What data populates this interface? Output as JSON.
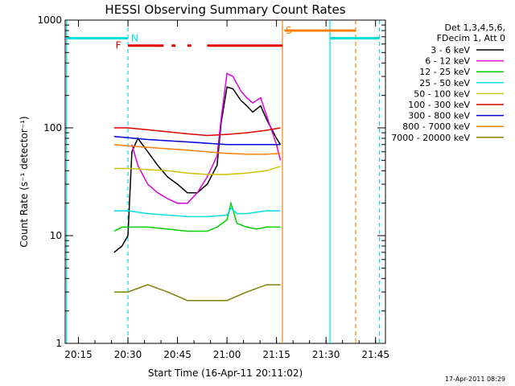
{
  "chart_data": {
    "type": "line",
    "title": "HESSI Observing Summary Count Rates",
    "xlabel": "Start Time (16-Apr-11 20:11:02)",
    "ylabel": "Count Rate (s⁻¹ detector⁻¹)",
    "yscale": "log",
    "ylim": [
      1,
      1000
    ],
    "xlim": [
      20.183,
      21.8
    ],
    "x_tick_labels": [
      "20:15",
      "20:30",
      "20:45",
      "21:00",
      "21:15",
      "21:30",
      "21:45"
    ],
    "x_ticks": [
      20.25,
      20.5,
      20.75,
      21.0,
      21.25,
      21.5,
      21.75
    ],
    "y_tick_labels": [
      "1",
      "10",
      "100",
      "1000"
    ],
    "y_ticks": [
      1,
      10,
      100,
      1000
    ],
    "legend": {
      "placement": "right",
      "header": [
        "Det 1,3,4,5,6,",
        "FDecim 1, Att 0"
      ]
    },
    "series": [
      {
        "name": "3 - 6 keV",
        "color": "#000000",
        "x": [
          20.43,
          20.47,
          20.5,
          20.52,
          20.55,
          20.6,
          20.65,
          20.7,
          20.75,
          20.8,
          20.85,
          20.9,
          20.95,
          20.97,
          21.0,
          21.03,
          21.07,
          21.1,
          21.13,
          21.17,
          21.2,
          21.25,
          21.27
        ],
        "y": [
          7,
          8,
          10,
          60,
          80,
          60,
          45,
          35,
          30,
          25,
          25,
          30,
          45,
          110,
          240,
          230,
          180,
          160,
          140,
          160,
          120,
          80,
          70
        ]
      },
      {
        "name": "6 - 12 keV",
        "color": "#e000e0",
        "x": [
          20.52,
          20.55,
          20.6,
          20.65,
          20.7,
          20.75,
          20.8,
          20.85,
          20.9,
          20.95,
          20.97,
          21.0,
          21.03,
          21.07,
          21.1,
          21.13,
          21.17,
          21.2,
          21.25,
          21.27
        ],
        "y": [
          70,
          45,
          30,
          25,
          22,
          20,
          20,
          25,
          35,
          55,
          120,
          320,
          300,
          220,
          190,
          170,
          190,
          130,
          70,
          50
        ]
      },
      {
        "name": "12 - 25 keV",
        "color": "#00d000",
        "x": [
          20.43,
          20.47,
          20.5,
          20.52,
          20.6,
          20.7,
          20.8,
          20.9,
          20.95,
          21.0,
          21.02,
          21.05,
          21.1,
          21.15,
          21.2,
          21.27
        ],
        "y": [
          11,
          12,
          12,
          12,
          12,
          11.5,
          11,
          11,
          12,
          14,
          20,
          13,
          12,
          11.5,
          12,
          12
        ]
      },
      {
        "name": "25 - 50 keV",
        "color": "#00e0e0",
        "x": [
          20.43,
          20.5,
          20.6,
          20.7,
          20.8,
          20.9,
          21.0,
          21.02,
          21.05,
          21.1,
          21.2,
          21.27
        ],
        "y": [
          17,
          17,
          16,
          15.5,
          15,
          15,
          15.5,
          18,
          16,
          16,
          17,
          17
        ]
      },
      {
        "name": "50 - 100 keV",
        "color": "#d0c000",
        "x": [
          20.43,
          20.5,
          20.6,
          20.7,
          20.8,
          20.9,
          21.0,
          21.1,
          21.2,
          21.27
        ],
        "y": [
          42,
          42,
          41,
          40,
          38,
          37,
          37,
          38,
          40,
          44
        ]
      },
      {
        "name": "100 - 300 keV",
        "color": "#e00000",
        "x": [
          20.43,
          20.5,
          20.6,
          20.7,
          20.8,
          20.9,
          21.0,
          21.1,
          21.2,
          21.27
        ],
        "y": [
          100,
          100,
          96,
          92,
          88,
          85,
          87,
          90,
          95,
          100
        ]
      },
      {
        "name": "300 - 800 keV",
        "color": "#0000e0",
        "x": [
          20.43,
          20.5,
          20.6,
          20.7,
          20.8,
          20.9,
          21.0,
          21.1,
          21.2,
          21.27
        ],
        "y": [
          83,
          81,
          78,
          76,
          74,
          72,
          70,
          70,
          70,
          70
        ]
      },
      {
        "name": "800 - 7000 keV",
        "color": "#ff7f00",
        "x": [
          20.43,
          20.5,
          20.6,
          20.7,
          20.8,
          20.9,
          21.0,
          21.1,
          21.2,
          21.27
        ],
        "y": [
          70,
          68,
          66,
          64,
          62,
          60,
          58,
          57,
          57,
          58
        ]
      },
      {
        "name": "7000 - 20000 keV",
        "color": "#808000",
        "x": [
          20.43,
          20.5,
          20.6,
          20.7,
          20.8,
          20.9,
          20.95,
          21.0,
          21.1,
          21.2,
          21.27
        ],
        "y": [
          3,
          3,
          3.5,
          3,
          2.5,
          2.5,
          2.5,
          2.5,
          3,
          3.5,
          3.5
        ]
      }
    ],
    "annotations": [
      {
        "text": "N",
        "color": "#00e0e0",
        "x": 20.5,
        "y": 680
      },
      {
        "text": "F",
        "color": "#e00000",
        "x": 20.47,
        "y": 580
      },
      {
        "text": "S",
        "color": "#ff7f00",
        "x": 21.28,
        "y": 800
      }
    ],
    "segments": [
      {
        "color": "#00e0e0",
        "x": [
          20.19,
          20.5
        ],
        "y": 680
      },
      {
        "color": "#00e0e0",
        "x": [
          21.52,
          21.77
        ],
        "y": 680
      },
      {
        "color": "#e00000",
        "x": [
          20.5,
          20.68
        ],
        "y": 580
      },
      {
        "color": "#e00000",
        "x": [
          20.72,
          20.74
        ],
        "y": 580
      },
      {
        "color": "#e00000",
        "x": [
          20.8,
          20.82
        ],
        "y": 580
      },
      {
        "color": "#e00000",
        "x": [
          20.9,
          21.28
        ],
        "y": 580
      },
      {
        "color": "#ff7f00",
        "x": [
          21.29,
          21.65
        ],
        "y": 800
      }
    ],
    "vlines": [
      {
        "color": "#00e0e0",
        "x": 20.19,
        "style": "solid"
      },
      {
        "color": "#00e0e0",
        "x": 20.5,
        "style": "dashed"
      },
      {
        "color": "#ff7f00",
        "x": 21.28,
        "style": "solid"
      },
      {
        "color": "#00e0e0",
        "x": 21.52,
        "style": "solid"
      },
      {
        "color": "#ff7f00",
        "x": 21.65,
        "style": "dashed"
      },
      {
        "color": "#00e0e0",
        "x": 21.77,
        "style": "dashed"
      }
    ]
  },
  "footer": {
    "timestamp": "17-Apr-2011 08:29"
  }
}
